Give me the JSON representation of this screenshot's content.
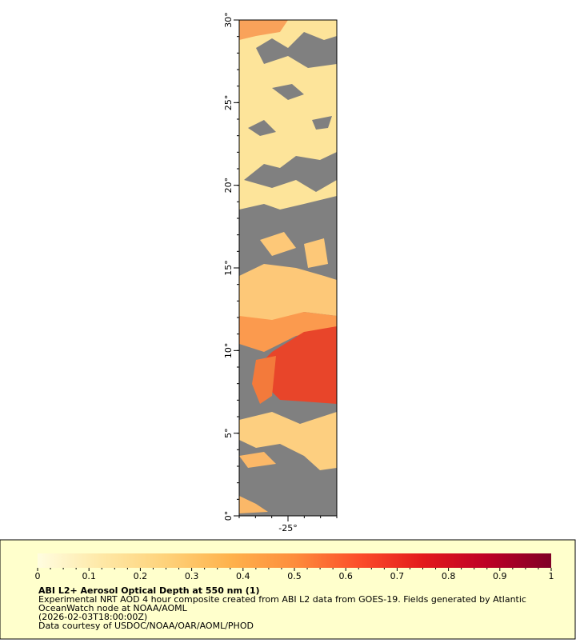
{
  "map": {
    "type": "map",
    "xlim": [
      -28,
      -22
    ],
    "ylim": [
      0,
      30
    ],
    "xticks": [
      {
        "value": -25,
        "label": "-25°"
      }
    ],
    "yticks": [
      {
        "value": 0,
        "label": "0°"
      },
      {
        "value": 5,
        "label": "5°"
      },
      {
        "value": 10,
        "label": "10°"
      },
      {
        "value": 15,
        "label": "15°"
      },
      {
        "value": 20,
        "label": "20°"
      },
      {
        "value": 25,
        "label": "25°"
      },
      {
        "value": 30,
        "label": "30°"
      }
    ]
  },
  "colorbar": {
    "range": [
      0,
      1
    ],
    "ticks": [
      0,
      0.1,
      0.2,
      0.3,
      0.4,
      0.5,
      0.6,
      0.7,
      0.8,
      0.9,
      1
    ],
    "colors": [
      "#fffde0",
      "#fee8a6",
      "#fed27a",
      "#feb24c",
      "#fd8d3c",
      "#fc4e2a",
      "#e31a1c",
      "#bd0026",
      "#800026"
    ]
  },
  "caption": {
    "title": "ABI L2+ Aerosol Optical Depth at 550 nm (1)",
    "lines": [
      "Experimental NRT AOD 4 hour composite created from ABI L2 data from GOES-19. Fields generated by Atlantic",
      "OceanWatch node at NOAA/AOML",
      "(2026-02-03T18:00:00Z)",
      "Data courtesy of USDOC/NOAA/OAR/AOML/PHOD"
    ]
  }
}
